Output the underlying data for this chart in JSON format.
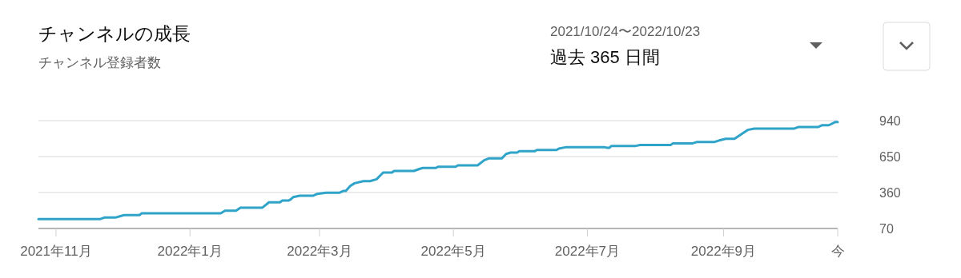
{
  "chart_data": {
    "type": "line",
    "title": "チャンネルの成長",
    "subtitle": "チャンネル登録者数",
    "annotations": [
      "2021/10/24〜2022/10/23",
      "過去 365 日間"
    ],
    "x": [
      "2021-10-24",
      "2021-11-21",
      "2021-11-23",
      "2021-11-28",
      "2021-12-02",
      "2021-12-09",
      "2021-12-10",
      "2022-01-15",
      "2022-01-17",
      "2022-01-22",
      "2022-01-24",
      "2022-02-03",
      "2022-02-06",
      "2022-02-11",
      "2022-02-12",
      "2022-02-15",
      "2022-02-16",
      "2022-02-17",
      "2022-02-20",
      "2022-02-26",
      "2022-02-28",
      "2022-03-04",
      "2022-03-10",
      "2022-03-12",
      "2022-03-13",
      "2022-03-15",
      "2022-03-17",
      "2022-03-21",
      "2022-03-24",
      "2022-03-27",
      "2022-03-30",
      "2022-04-03",
      "2022-04-04",
      "2022-04-13",
      "2022-04-15",
      "2022-04-17",
      "2022-04-23",
      "2022-04-24",
      "2022-05-02",
      "2022-05-03",
      "2022-05-12",
      "2022-05-15",
      "2022-05-17",
      "2022-05-23",
      "2022-05-25",
      "2022-05-27",
      "2022-05-30",
      "2022-05-31",
      "2022-06-07",
      "2022-06-08",
      "2022-06-17",
      "2022-06-18",
      "2022-06-21",
      "2022-07-09",
      "2022-07-10",
      "2022-07-11",
      "2022-07-12",
      "2022-07-23",
      "2022-07-25",
      "2022-08-08",
      "2022-08-09",
      "2022-08-18",
      "2022-08-20",
      "2022-08-28",
      "2022-08-30",
      "2022-09-02",
      "2022-09-06",
      "2022-09-12",
      "2022-09-15",
      "2022-10-03",
      "2022-10-05",
      "2022-10-14",
      "2022-10-16",
      "2022-10-19",
      "2022-10-22",
      "2022-10-23"
    ],
    "series": [
      {
        "color": "#2fa3c8",
        "values": [
          145,
          145,
          158,
          158,
          178,
          178,
          192,
          192,
          214,
          214,
          238,
          238,
          281,
          281,
          295,
          295,
          306,
          323,
          334,
          334,
          349,
          358,
          358,
          373,
          373,
          413,
          435,
          452,
          452,
          467,
          521,
          521,
          534,
          534,
          547,
          558,
          558,
          568,
          568,
          579,
          579,
          620,
          635,
          635,
          671,
          682,
          682,
          693,
          693,
          703,
          703,
          714,
          725,
          725,
          721,
          721,
          736,
          736,
          744,
          744,
          757,
          757,
          768,
          768,
          780,
          793,
          793,
          865,
          875,
          875,
          888,
          888,
          903,
          903,
          929,
          929
        ]
      }
    ],
    "xlim": [
      "2021-10-24",
      "2022-10-23"
    ],
    "xticks": [
      {
        "value": "2021-11-01",
        "label": "2021年11月"
      },
      {
        "value": "2022-01-01",
        "label": "2022年1月"
      },
      {
        "value": "2022-03-01",
        "label": "2022年3月"
      },
      {
        "value": "2022-05-01",
        "label": "2022年5月"
      },
      {
        "value": "2022-07-01",
        "label": "2022年7月"
      },
      {
        "value": "2022-09-01",
        "label": "2022年9月"
      },
      {
        "value": "2022-10-23",
        "label": "今"
      }
    ],
    "ylim": [
      70,
      940
    ],
    "yticks": [
      70,
      360,
      650,
      940
    ],
    "grid": "y",
    "marker": "none",
    "line_style": "solid"
  }
}
